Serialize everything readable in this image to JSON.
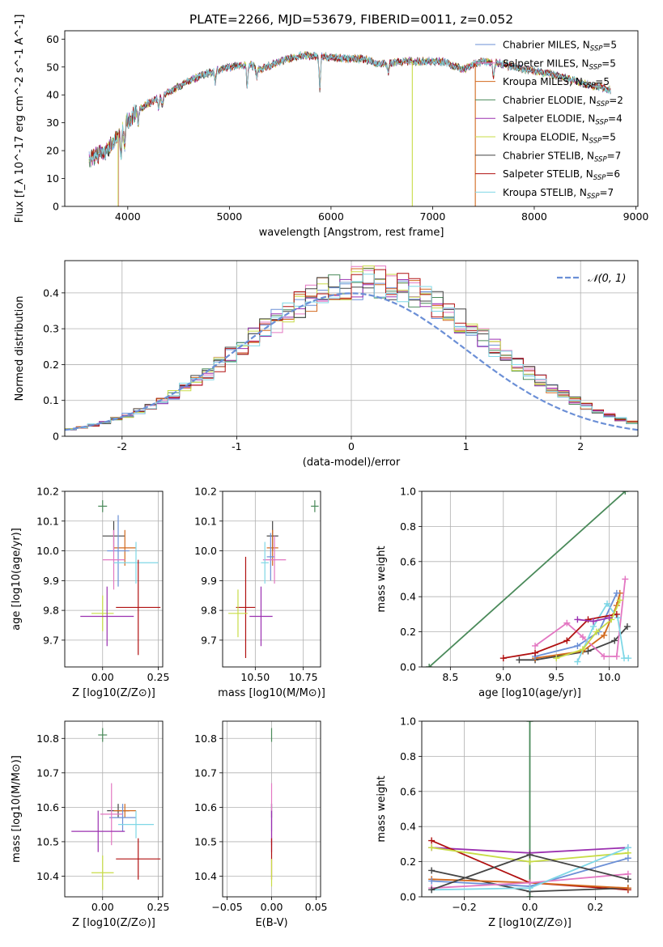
{
  "chart_data": [
    {
      "id": "spectrum",
      "type": "line",
      "title": "PLATE=2266, MJD=53679, FIBERID=0011, z=0.052",
      "xlabel": "wavelength [Angstrom, rest frame]",
      "ylabel": "Flux [f_λ 10^-17 erg cm^-2 s^-1 A^-1]",
      "xlim": [
        3380,
        9020
      ],
      "ylim": [
        0,
        63
      ],
      "xticks": [
        4000,
        5000,
        6000,
        7000,
        8000,
        9000
      ],
      "yticks": [
        0,
        10,
        20,
        30,
        40,
        50,
        60
      ],
      "grid": false,
      "legend_position": "top-right",
      "wavelength_range": [
        3620,
        8750
      ],
      "continuum_anchors": {
        "x": [
          3620,
          3800,
          3950,
          4050,
          4200,
          4400,
          4600,
          4800,
          5000,
          5200,
          5300,
          5500,
          5700,
          5900,
          6100,
          6300,
          6500,
          6700,
          6900,
          7100,
          7300,
          7400,
          7500,
          7700,
          7900,
          8100,
          8300,
          8500,
          8750
        ],
        "y": [
          17,
          20,
          28,
          33,
          37,
          41,
          45,
          48,
          50,
          51,
          49,
          52,
          54,
          54,
          53,
          53,
          51,
          52,
          52,
          52,
          49,
          51,
          52,
          51,
          49,
          48,
          46,
          44,
          42
        ]
      },
      "spikes": [
        {
          "series": "Salpeter MILES",
          "x": 3910,
          "y": 0
        },
        {
          "series": "Kroupa ELODIE",
          "x": 3905,
          "y": 0
        },
        {
          "series": "Kroupa ELODIE",
          "x": 6800,
          "y": 0
        },
        {
          "series": "Kroupa MILES",
          "x": 7420,
          "y": 0
        }
      ],
      "series": [
        {
          "name": "Chabrier MILES",
          "nssp": "5",
          "color": "#6b8fd6"
        },
        {
          "name": "Salpeter MILES",
          "nssp": "5",
          "color": "#e377c2"
        },
        {
          "name": "Kroupa MILES",
          "nssp": "5",
          "color": "#d2691e"
        },
        {
          "name": "Chabrier ELODIE",
          "nssp": "2",
          "color": "#4a8a5a"
        },
        {
          "name": "Salpeter ELODIE",
          "nssp": "4",
          "color": "#9b30b0"
        },
        {
          "name": "Kroupa ELODIE",
          "nssp": "5",
          "color": "#c8dc46"
        },
        {
          "name": "Chabrier STELIB",
          "nssp": "7",
          "color": "#444444"
        },
        {
          "name": "Salpeter STELIB",
          "nssp": "6",
          "color": "#b01010"
        },
        {
          "name": "Kroupa STELIB",
          "nssp": "7",
          "color": "#7fd7e6"
        }
      ]
    },
    {
      "id": "residuals",
      "type": "line",
      "xlabel": "(data-model)/error",
      "ylabel": "Normed distribution",
      "xlim": [
        -2.5,
        2.5
      ],
      "ylim": [
        0,
        0.49
      ],
      "xticks": [
        -2,
        -1,
        0,
        1,
        2
      ],
      "yticks": [
        0.0,
        0.1,
        0.2,
        0.3,
        0.4
      ],
      "grid": true,
      "legend_position": "top-right",
      "reference_curve": {
        "name": "𝒩(0, 1)",
        "color": "#6b8fd6",
        "style": "dashed",
        "mean": 0,
        "sigma": 1
      },
      "bin_width": 0.1,
      "histogram_shape": {
        "center": 0.15,
        "sigma": 1.0,
        "peak": 0.43
      },
      "series_colors": [
        "#6b8fd6",
        "#e377c2",
        "#d2691e",
        "#4a8a5a",
        "#9b30b0",
        "#c8dc46",
        "#444444",
        "#b01010",
        "#7fd7e6"
      ]
    },
    {
      "id": "z-age",
      "type": "scatter",
      "xlabel": "Z [log10(Z/Z⊙)]",
      "ylabel": "age  [log10(age/yr)]",
      "xlim": [
        -0.17,
        0.27
      ],
      "ylim": [
        9.61,
        10.2
      ],
      "xticks": [
        "0.00",
        "0.25"
      ],
      "yticks": [
        "9.7",
        "9.8",
        "9.9",
        "10.0",
        "10.1",
        "10.2"
      ],
      "grid": true,
      "points": [
        {
          "color": "#4a8a5a",
          "x": 0.0,
          "y": 10.15,
          "xerr": 0.02,
          "yerr": 0.02
        },
        {
          "color": "#444444",
          "x": 0.05,
          "y": 10.05,
          "xerr": 0.05,
          "yerr": 0.05
        },
        {
          "color": "#d2691e",
          "x": 0.1,
          "y": 10.01,
          "xerr": 0.05,
          "yerr": 0.06
        },
        {
          "color": "#6b8fd6",
          "x": 0.07,
          "y": 10.0,
          "xerr": 0.05,
          "yerr": 0.12
        },
        {
          "color": "#e377c2",
          "x": 0.05,
          "y": 9.97,
          "xerr": 0.05,
          "yerr": 0.1
        },
        {
          "color": "#7fd7e6",
          "x": 0.15,
          "y": 9.96,
          "xerr": 0.1,
          "yerr": 0.07
        },
        {
          "color": "#b01010",
          "x": 0.16,
          "y": 9.81,
          "xerr": 0.1,
          "yerr": 0.16
        },
        {
          "color": "#c8dc46",
          "x": 0.0,
          "y": 9.79,
          "xerr": 0.05,
          "yerr": 0.06
        },
        {
          "color": "#9b30b0",
          "x": 0.02,
          "y": 9.78,
          "xerr": 0.12,
          "yerr": 0.1
        }
      ]
    },
    {
      "id": "mass-age",
      "type": "scatter",
      "xlabel": "mass [log10(M/M⊙)]",
      "ylabel": "",
      "xlim": [
        10.33,
        10.84
      ],
      "ylim": [
        9.61,
        10.2
      ],
      "xticks": [
        "10.50",
        "10.75"
      ],
      "yticks": [
        "9.7",
        "9.8",
        "9.9",
        "10.0",
        "10.1",
        "10.2"
      ],
      "grid": true,
      "points": [
        {
          "color": "#4a8a5a",
          "x": 10.81,
          "y": 10.15,
          "xerr": 0.02,
          "yerr": 0.02
        },
        {
          "color": "#444444",
          "x": 10.59,
          "y": 10.05,
          "xerr": 0.03,
          "yerr": 0.05
        },
        {
          "color": "#d2691e",
          "x": 10.59,
          "y": 10.01,
          "xerr": 0.03,
          "yerr": 0.06
        },
        {
          "color": "#6b8fd6",
          "x": 10.58,
          "y": 9.98,
          "xerr": 0.02,
          "yerr": 0.08
        },
        {
          "color": "#e377c2",
          "x": 10.6,
          "y": 9.97,
          "xerr": 0.06,
          "yerr": 0.08
        },
        {
          "color": "#7fd7e6",
          "x": 10.55,
          "y": 9.96,
          "xerr": 0.02,
          "yerr": 0.07
        },
        {
          "color": "#b01010",
          "x": 10.45,
          "y": 9.81,
          "xerr": 0.05,
          "yerr": 0.17
        },
        {
          "color": "#c8dc46",
          "x": 10.41,
          "y": 9.79,
          "xerr": 0.05,
          "yerr": 0.08
        },
        {
          "color": "#9b30b0",
          "x": 10.53,
          "y": 9.78,
          "xerr": 0.06,
          "yerr": 0.1
        }
      ]
    },
    {
      "id": "age-weight",
      "type": "line",
      "xlabel": "age  [log10(age/yr)]",
      "ylabel": "mass weight",
      "xlim": [
        8.23,
        10.27
      ],
      "ylim": [
        0,
        1.0
      ],
      "xticks": [
        "8.5",
        "9.0",
        "9.5",
        "10.0"
      ],
      "yticks": [
        "0.0",
        "0.2",
        "0.4",
        "0.6",
        "0.8",
        "1.0"
      ],
      "grid": true,
      "series": [
        {
          "color": "#4a8a5a",
          "x": [
            8.3,
            10.15
          ],
          "y": [
            0.0,
            1.0
          ]
        },
        {
          "color": "#444444",
          "x": [
            9.15,
            9.3,
            9.8,
            10.05,
            10.17
          ],
          "y": [
            0.04,
            0.04,
            0.09,
            0.15,
            0.23
          ]
        },
        {
          "color": "#d2691e",
          "x": [
            9.3,
            9.75,
            9.95,
            10.07,
            10.1
          ],
          "y": [
            0.05,
            0.09,
            0.18,
            0.35,
            0.42
          ]
        },
        {
          "color": "#6b8fd6",
          "x": [
            9.3,
            9.7,
            9.9,
            10.07
          ],
          "y": [
            0.06,
            0.12,
            0.2,
            0.42
          ]
        },
        {
          "color": "#e377c2",
          "x": [
            9.3,
            9.6,
            9.75,
            9.95,
            10.07,
            10.15
          ],
          "y": [
            0.12,
            0.25,
            0.17,
            0.06,
            0.06,
            0.5
          ]
        },
        {
          "color": "#7fd7e6",
          "x": [
            9.7,
            9.85,
            9.98,
            10.08,
            10.14,
            10.18
          ],
          "y": [
            0.03,
            0.23,
            0.36,
            0.28,
            0.05,
            0.05
          ]
        },
        {
          "color": "#b01010",
          "x": [
            9.0,
            9.3,
            9.6,
            9.8,
            10.07
          ],
          "y": [
            0.05,
            0.08,
            0.15,
            0.27,
            0.3
          ]
        },
        {
          "color": "#c8dc46",
          "x": [
            9.5,
            9.75,
            9.88,
            10.02,
            10.1
          ],
          "y": [
            0.05,
            0.1,
            0.2,
            0.27,
            0.38
          ]
        },
        {
          "color": "#9b30b0",
          "x": [
            9.7,
            9.85,
            10.0
          ],
          "y": [
            0.27,
            0.26,
            0.28
          ]
        }
      ]
    },
    {
      "id": "z-mass",
      "type": "scatter",
      "xlabel": "Z [log10(Z/Z⊙)]",
      "ylabel": "mass [log10(M/M⊙)]",
      "xlim": [
        -0.17,
        0.27
      ],
      "ylim": [
        10.34,
        10.85
      ],
      "xticks": [
        "0.00",
        "0.25"
      ],
      "yticks": [
        "10.4",
        "10.5",
        "10.6",
        "10.7",
        "10.8"
      ],
      "grid": true,
      "points": [
        {
          "color": "#4a8a5a",
          "x": 0.0,
          "y": 10.81,
          "xerr": 0.02,
          "yerr": 0.02
        },
        {
          "color": "#444444",
          "x": 0.07,
          "y": 10.59,
          "xerr": 0.05,
          "yerr": 0.02
        },
        {
          "color": "#d2691e",
          "x": 0.1,
          "y": 10.59,
          "xerr": 0.05,
          "yerr": 0.02
        },
        {
          "color": "#6b8fd6",
          "x": 0.09,
          "y": 10.57,
          "xerr": 0.06,
          "yerr": 0.04
        },
        {
          "color": "#e377c2",
          "x": 0.04,
          "y": 10.58,
          "xerr": 0.05,
          "yerr": 0.09
        },
        {
          "color": "#7fd7e6",
          "x": 0.15,
          "y": 10.55,
          "xerr": 0.08,
          "yerr": 0.04
        },
        {
          "color": "#9b30b0",
          "x": -0.02,
          "y": 10.53,
          "xerr": 0.12,
          "yerr": 0.06
        },
        {
          "color": "#b01010",
          "x": 0.16,
          "y": 10.45,
          "xerr": 0.1,
          "yerr": 0.06
        },
        {
          "color": "#c8dc46",
          "x": 0.0,
          "y": 10.41,
          "xerr": 0.05,
          "yerr": 0.05
        }
      ]
    },
    {
      "id": "ebv-mass",
      "type": "scatter",
      "xlabel": "E(B-V)",
      "ylabel": "",
      "xlim": [
        -0.055,
        0.055
      ],
      "ylim": [
        10.34,
        10.85
      ],
      "xticks": [
        "−0.05",
        "0.00",
        "0.05"
      ],
      "yticks": [
        "10.4",
        "10.5",
        "10.6",
        "10.7",
        "10.8"
      ],
      "grid": true,
      "points": [
        {
          "color": "#4a8a5a",
          "x": 0.0,
          "y": 10.81,
          "xerr": 0.0,
          "yerr": 0.02
        },
        {
          "color": "#444444",
          "x": 0.0,
          "y": 10.59,
          "xerr": 0.0,
          "yerr": 0.02
        },
        {
          "color": "#6b8fd6",
          "x": 0.0,
          "y": 10.57,
          "xerr": 0.0,
          "yerr": 0.04
        },
        {
          "color": "#e377c2",
          "x": 0.0,
          "y": 10.58,
          "xerr": 0.0,
          "yerr": 0.09
        },
        {
          "color": "#9b30b0",
          "x": 0.0,
          "y": 10.53,
          "xerr": 0.0,
          "yerr": 0.06
        },
        {
          "color": "#b01010",
          "x": 0.0,
          "y": 10.45,
          "xerr": 0.0,
          "yerr": 0.06
        },
        {
          "color": "#c8dc46",
          "x": 0.0,
          "y": 10.41,
          "xerr": 0.0,
          "yerr": 0.04
        }
      ]
    },
    {
      "id": "z-weight",
      "type": "line",
      "xlabel": "Z [log10(Z/Z⊙)]",
      "ylabel": "mass weight",
      "xlim": [
        -0.33,
        0.33
      ],
      "ylim": [
        0,
        1.0
      ],
      "xticks": [
        "−0.2",
        "0.0",
        "0.2"
      ],
      "yticks": [
        "0.0",
        "0.2",
        "0.4",
        "0.6",
        "0.8",
        "1.0"
      ],
      "grid": true,
      "series": [
        {
          "color": "#4a8a5a",
          "x": [
            0.0,
            0.0
          ],
          "y": [
            0.0,
            1.0
          ]
        },
        {
          "color": "#9b30b0",
          "x": [
            -0.3,
            0.0,
            0.3
          ],
          "y": [
            0.28,
            0.25,
            0.28
          ]
        },
        {
          "color": "#b01010",
          "x": [
            -0.3,
            0.0,
            0.3
          ],
          "y": [
            0.32,
            0.08,
            0.04
          ]
        },
        {
          "color": "#c8dc46",
          "x": [
            -0.3,
            0.0,
            0.3
          ],
          "y": [
            0.28,
            0.2,
            0.25
          ]
        },
        {
          "color": "#444444",
          "x": [
            -0.3,
            0.0,
            0.3
          ],
          "y": [
            0.15,
            0.03,
            0.05
          ]
        },
        {
          "color": "#d2691e",
          "x": [
            -0.3,
            0.0,
            0.3
          ],
          "y": [
            0.1,
            0.08,
            0.05
          ]
        },
        {
          "color": "#6b8fd6",
          "x": [
            -0.3,
            0.0,
            0.3
          ],
          "y": [
            0.09,
            0.06,
            0.22
          ]
        },
        {
          "color": "#e377c2",
          "x": [
            -0.3,
            0.0,
            0.3
          ],
          "y": [
            0.05,
            0.08,
            0.13
          ]
        },
        {
          "color": "#7fd7e6",
          "x": [
            -0.3,
            0.0,
            0.3
          ],
          "y": [
            0.04,
            0.05,
            0.28
          ]
        },
        {
          "color": "#444444",
          "x": [
            -0.3,
            0.0,
            0.3
          ],
          "y": [
            0.04,
            0.24,
            0.1
          ]
        }
      ]
    }
  ]
}
